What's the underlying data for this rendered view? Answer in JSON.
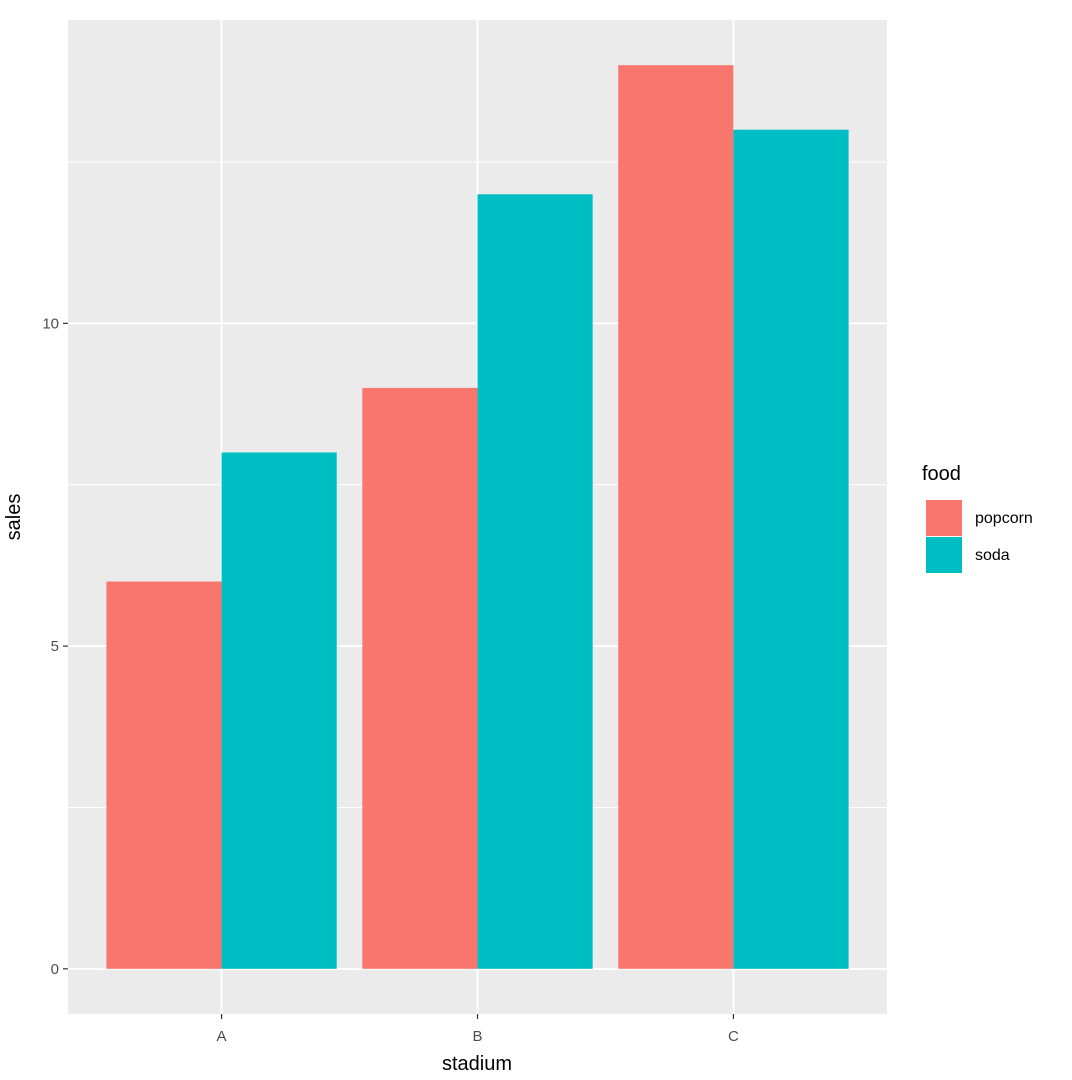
{
  "chart_data": {
    "type": "bar",
    "categories": [
      "A",
      "B",
      "C"
    ],
    "series": [
      {
        "name": "popcorn",
        "values": [
          6,
          9,
          14
        ],
        "color": "#F8766D"
      },
      {
        "name": "soda",
        "values": [
          8,
          12,
          13
        ],
        "color": "#00BFC4"
      }
    ],
    "xlabel": "stadium",
    "ylabel": "sales",
    "ylim": [
      -0.7,
      14.7
    ],
    "yticks": [
      0,
      5,
      10
    ],
    "grid": true,
    "legend": {
      "title": "food",
      "position": "right"
    },
    "panel_color": "#EBEBEB",
    "grid_color": "#FFFFFF"
  }
}
